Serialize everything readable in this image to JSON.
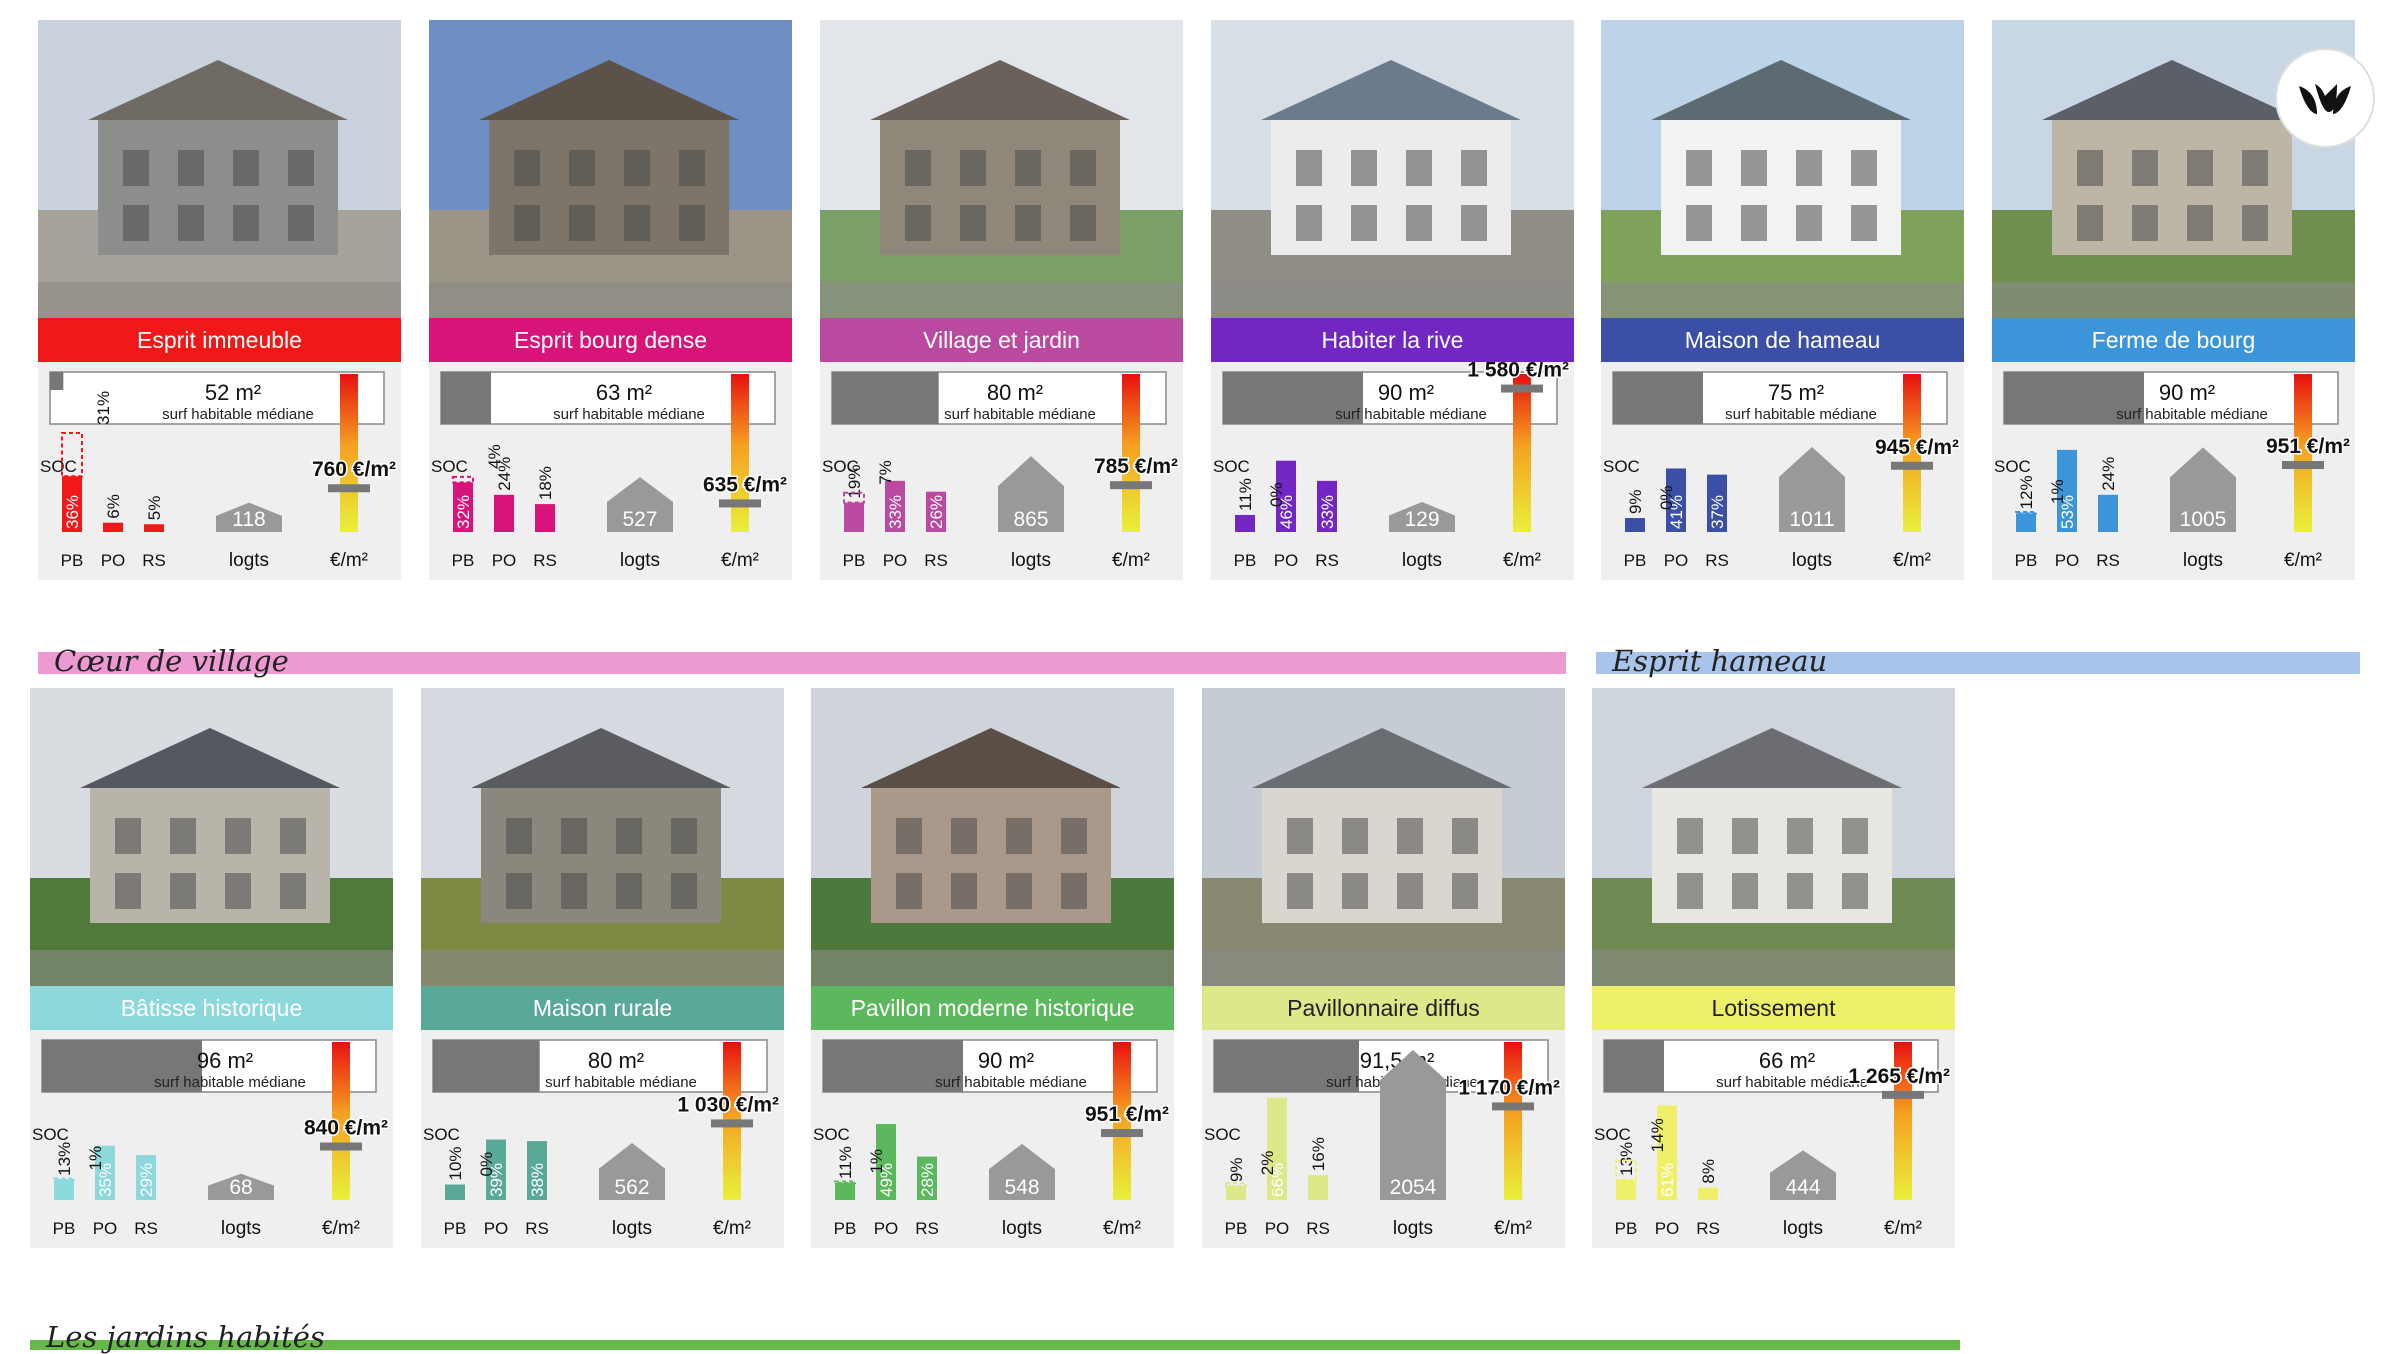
{
  "groups": [
    {
      "label": "Cœur de village",
      "color": "#ee9ad2"
    },
    {
      "label": "Esprit hameau",
      "color": "#a9c4ea"
    },
    {
      "label": "Les jardins habités",
      "color": "#66b84a"
    }
  ],
  "common": {
    "surf_caption": "surf habitable médiane",
    "soc": "SOC",
    "cat_pb": "PB",
    "cat_po": "PO",
    "cat_rs": "RS",
    "logts": "logts",
    "price_unit": "€/m²"
  },
  "chart_data": [
    {
      "type": "bar",
      "title": "Esprit immeuble",
      "color": "#f01818",
      "area": "52 m²",
      "area_value": 52,
      "categories": [
        "PB",
        "PO",
        "RS"
      ],
      "values": [
        36,
        6,
        5
      ],
      "labels": [
        "36%",
        "6%",
        "5%"
      ],
      "soc": 31,
      "soc_label": "31%",
      "logements": 118,
      "logts_label": "118",
      "price": 760,
      "price_label": "760 €/m²"
    },
    {
      "type": "bar",
      "title": "Esprit bourg dense",
      "color": "#d8147a",
      "area": "63 m²",
      "area_value": 63,
      "categories": [
        "PB",
        "PO",
        "RS"
      ],
      "values": [
        32,
        24,
        18
      ],
      "labels": [
        "32%",
        "24%",
        "18%"
      ],
      "soc": 4,
      "soc_label": "4%",
      "logements": 527,
      "logts_label": "527",
      "price": 635,
      "price_label": "635 €/m²"
    },
    {
      "type": "bar",
      "title": "Village et jardin",
      "color": "#b94aa0",
      "area": "80 m²",
      "area_value": 80,
      "categories": [
        "PB",
        "PO",
        "RS"
      ],
      "values": [
        19,
        33,
        26
      ],
      "labels": [
        "19%",
        "33%",
        "26%"
      ],
      "soc": 7,
      "soc_label": "7%",
      "logements": 865,
      "logts_label": "865",
      "price": 785,
      "price_label": "785 €/m²"
    },
    {
      "type": "bar",
      "title": "Habiter la rive",
      "color": "#7227c4",
      "area": "90 m²",
      "area_value": 90,
      "categories": [
        "PB",
        "PO",
        "RS"
      ],
      "values": [
        11,
        46,
        33
      ],
      "labels": [
        "11%",
        "46%",
        "33%"
      ],
      "soc": 0,
      "soc_label": "0%",
      "logements": 129,
      "logts_label": "129",
      "price": 1580,
      "price_label": "1 580 €/m²"
    },
    {
      "type": "bar",
      "title": "Maison de hameau",
      "color": "#3b4fa6",
      "area": "75 m²",
      "area_value": 75,
      "categories": [
        "PB",
        "PO",
        "RS"
      ],
      "values": [
        9,
        41,
        37
      ],
      "labels": [
        "9%",
        "41%",
        "37%"
      ],
      "soc": 0,
      "soc_label": "0%",
      "logements": 1011,
      "logts_label": "1011",
      "price": 945,
      "price_label": "945 €/m²"
    },
    {
      "type": "bar",
      "title": "Ferme de bourg",
      "color": "#3b95d8",
      "area": "90 m²",
      "area_value": 90,
      "categories": [
        "PB",
        "PO",
        "RS"
      ],
      "values": [
        12,
        53,
        24
      ],
      "labels": [
        "12%",
        "53%",
        "24%"
      ],
      "soc": 1,
      "soc_label": "1%",
      "logements": 1005,
      "logts_label": "1005",
      "price": 951,
      "price_label": "951 €/m²"
    },
    {
      "type": "bar",
      "title": "Bâtisse historique",
      "color": "#8cd8da",
      "area": "96 m²",
      "area_value": 96,
      "categories": [
        "PB",
        "PO",
        "RS"
      ],
      "values": [
        13,
        35,
        29
      ],
      "labels": [
        "13%",
        "35%",
        "29%"
      ],
      "soc": 1,
      "soc_label": "1%",
      "logements": 68,
      "logts_label": "68",
      "price": 840,
      "price_label": "840 €/m²"
    },
    {
      "type": "bar",
      "title": "Maison rurale",
      "color": "#5aa898",
      "area": "80 m²",
      "area_value": 80,
      "categories": [
        "PB",
        "PO",
        "RS"
      ],
      "values": [
        10,
        39,
        38
      ],
      "labels": [
        "10%",
        "39%",
        "38%"
      ],
      "soc": 0,
      "soc_label": "0%",
      "logements": 562,
      "logts_label": "562",
      "price": 1030,
      "price_label": "1 030 €/m²"
    },
    {
      "type": "bar",
      "title": "Pavillon moderne historique",
      "color": "#5cb85c",
      "area": "90 m²",
      "area_value": 90,
      "categories": [
        "PB",
        "PO",
        "RS"
      ],
      "values": [
        11,
        49,
        28
      ],
      "labels": [
        "11%",
        "49%",
        "28%"
      ],
      "soc": 1,
      "soc_label": "1%",
      "logements": 548,
      "logts_label": "548",
      "price": 951,
      "price_label": "951 €/m²"
    },
    {
      "type": "bar",
      "title": "Pavillonnaire diffus",
      "color": "#dde88a",
      "area": "91,5 m²",
      "area_value": 91.5,
      "categories": [
        "PB",
        "PO",
        "RS"
      ],
      "values": [
        9,
        66,
        16
      ],
      "labels": [
        "9%",
        "66%",
        "16%"
      ],
      "soc": 2,
      "soc_label": "2%",
      "logements": 2054,
      "logts_label": "2054",
      "price": 1170,
      "price_label": "1 170 €/m²"
    },
    {
      "type": "bar",
      "title": "Lotissement",
      "color": "#eef06a",
      "area": "66 m²",
      "area_value": 66,
      "categories": [
        "PB",
        "PO",
        "RS"
      ],
      "values": [
        13,
        61,
        8
      ],
      "labels": [
        "13%",
        "61%",
        "8%"
      ],
      "soc": 14,
      "soc_label": "14%",
      "logements": 444,
      "logts_label": "444",
      "price": 1265,
      "price_label": "1 265 €/m²"
    }
  ]
}
